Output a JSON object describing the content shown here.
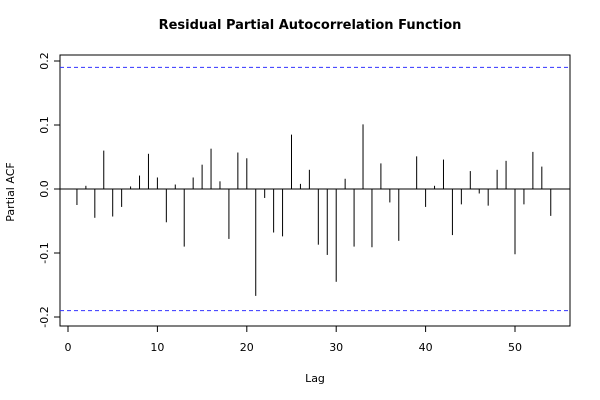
{
  "chart_data": {
    "type": "bar",
    "title": "Residual Partial Autocorrelation Function",
    "xlabel": "Lag",
    "ylabel": "Partial ACF",
    "xlim": [
      -1,
      56
    ],
    "ylim": [
      -0.2,
      0.2
    ],
    "x_ticks": [
      0,
      10,
      20,
      30,
      40,
      50
    ],
    "x_tick_labels": [
      "0",
      "10",
      "20",
      "30",
      "40",
      "50"
    ],
    "y_ticks": [
      -0.2,
      -0.1,
      0.0,
      0.1,
      0.2
    ],
    "y_tick_labels": [
      "-0.2",
      "-0.1",
      "0.0",
      "0.1",
      "0.2"
    ],
    "confidence_bound": 0.19,
    "confidence_color": "#3333ff",
    "bar_color": "#000000",
    "lags": [
      1,
      2,
      3,
      4,
      5,
      6,
      7,
      8,
      9,
      10,
      11,
      12,
      13,
      14,
      15,
      16,
      17,
      18,
      19,
      20,
      21,
      22,
      23,
      24,
      25,
      26,
      27,
      28,
      29,
      30,
      31,
      32,
      33,
      34,
      35,
      36,
      37,
      38,
      39,
      40,
      41,
      42,
      43,
      44,
      45,
      46,
      47,
      48,
      49,
      50,
      51,
      52,
      53,
      54
    ],
    "values": [
      -0.025,
      0.005,
      -0.045,
      0.06,
      -0.043,
      -0.028,
      0.004,
      0.021,
      0.055,
      0.018,
      -0.052,
      0.007,
      -0.09,
      0.018,
      0.038,
      0.063,
      0.012,
      -0.078,
      0.057,
      0.048,
      -0.167,
      -0.014,
      -0.068,
      -0.074,
      0.085,
      0.008,
      0.03,
      -0.087,
      -0.103,
      -0.145,
      0.016,
      -0.09,
      0.101,
      -0.091,
      0.04,
      -0.021,
      -0.081,
      0.0,
      0.051,
      -0.028,
      0.005,
      0.046,
      -0.072,
      -0.024,
      0.028,
      -0.007,
      -0.026,
      0.03,
      0.044,
      -0.102,
      -0.024,
      0.058,
      0.035,
      -0.042
    ]
  }
}
